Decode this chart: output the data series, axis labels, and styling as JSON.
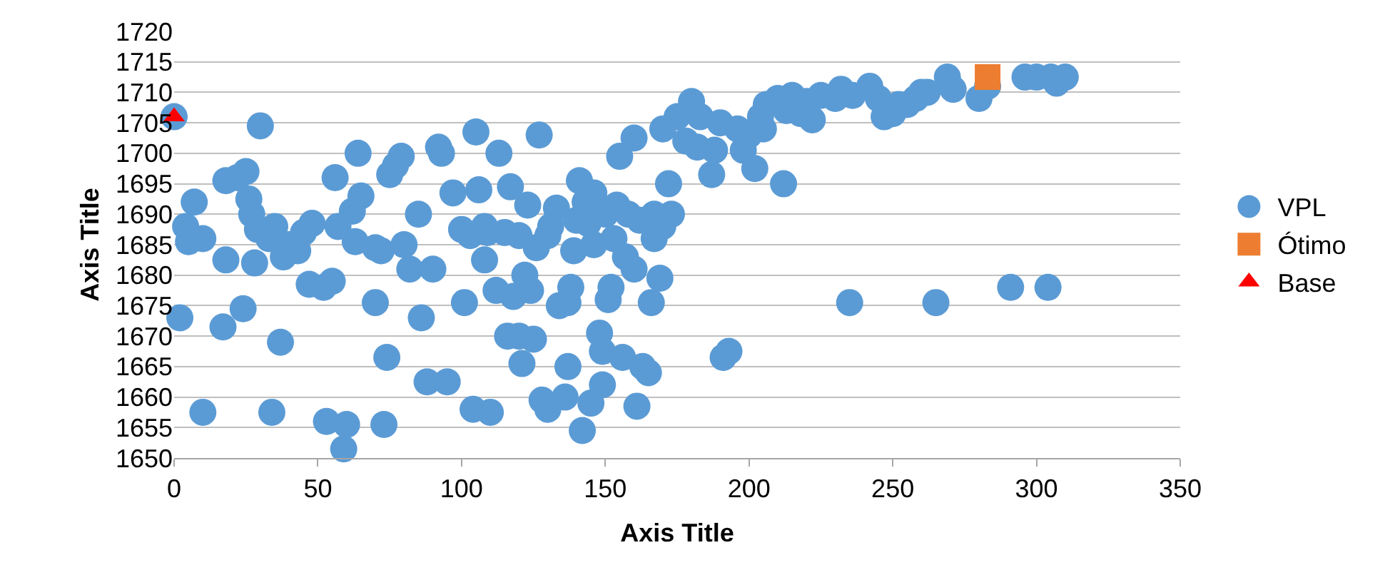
{
  "chart_data": {
    "type": "scatter",
    "xlabel": "Axis Title",
    "ylabel": "Axis Title",
    "xlim": [
      0,
      350
    ],
    "xticks": [
      0,
      50,
      100,
      150,
      200,
      250,
      300,
      350
    ],
    "ylim": [
      1650,
      1720
    ],
    "yticks": [
      1650,
      1655,
      1660,
      1665,
      1670,
      1675,
      1680,
      1685,
      1690,
      1695,
      1700,
      1705,
      1710,
      1715,
      1720
    ],
    "grid": "y",
    "legend": "right",
    "series": [
      {
        "name": "VPL",
        "color": "#5b9bd5",
        "marker": "circle",
        "x": [
          0,
          30,
          2,
          5,
          4,
          7,
          10,
          10,
          17,
          18,
          18,
          22,
          25,
          24,
          26,
          27,
          28,
          29,
          33,
          35,
          34,
          37,
          38,
          40,
          43,
          45,
          47,
          48,
          52,
          53,
          55,
          56,
          57,
          59,
          60,
          62,
          63,
          64,
          65,
          70,
          70,
          72,
          73,
          74,
          75,
          77,
          79,
          80,
          82,
          85,
          86,
          88,
          90,
          92,
          93,
          95,
          97,
          100,
          101,
          103,
          104,
          105,
          106,
          108,
          108,
          109,
          110,
          112,
          113,
          115,
          116,
          117,
          118,
          120,
          121,
          120,
          122,
          123,
          124,
          125,
          126,
          127,
          128,
          130,
          130,
          131,
          133,
          134,
          136,
          137,
          137,
          138,
          139,
          140,
          141,
          142,
          143,
          144,
          145,
          146,
          146,
          148,
          149,
          149,
          150,
          151,
          152,
          153,
          154,
          155,
          156,
          157,
          158,
          160,
          160,
          161,
          162,
          163,
          165,
          166,
          167,
          167,
          169,
          170,
          170,
          172,
          173,
          175,
          178,
          180,
          182,
          183,
          187,
          188,
          190,
          191,
          193,
          196,
          198,
          200,
          202,
          204,
          205,
          206,
          210,
          212,
          213,
          215,
          218,
          220,
          222,
          225,
          230,
          232,
          235,
          236,
          242,
          245,
          247,
          250,
          252,
          255,
          258,
          260,
          262,
          265,
          269,
          271,
          280,
          283,
          291,
          296,
          300,
          304,
          305,
          307,
          310
        ],
        "values": [
          1706,
          1704.5,
          1673,
          1685.5,
          1688,
          1692,
          1686,
          1657.5,
          1671.5,
          1682.5,
          1695.5,
          1696,
          1697,
          1674.5,
          1692.5,
          1690,
          1682,
          1687.5,
          1686,
          1688,
          1657.5,
          1669,
          1683,
          1685,
          1684,
          1687,
          1678.5,
          1688.5,
          1678,
          1656,
          1679,
          1696,
          1688,
          1651.5,
          1655.5,
          1690.5,
          1685.5,
          1700,
          1693,
          1675.5,
          1684.5,
          1684,
          1655.5,
          1666.5,
          1696.5,
          1698,
          1699.5,
          1685,
          1681,
          1690,
          1673,
          1662.5,
          1681,
          1701,
          1700,
          1662.5,
          1693.5,
          1687.5,
          1675.5,
          1686.5,
          1658,
          1703.5,
          1694,
          1688,
          1682.5,
          1687,
          1657.5,
          1677.5,
          1700,
          1687,
          1670,
          1694.5,
          1676.5,
          1670,
          1665.5,
          1686.5,
          1680,
          1691.5,
          1677.5,
          1669.5,
          1684.5,
          1703,
          1659.5,
          1686.5,
          1658,
          1688,
          1691,
          1675,
          1660,
          1665,
          1675.5,
          1678,
          1684,
          1689,
          1695.5,
          1654.5,
          1692,
          1688.5,
          1659,
          1693.5,
          1685,
          1670.5,
          1667.5,
          1662,
          1690,
          1676,
          1678,
          1686,
          1691.5,
          1699.5,
          1666.5,
          1683,
          1690,
          1681,
          1702.5,
          1658.5,
          1689,
          1665,
          1664,
          1675.5,
          1690,
          1686,
          1679.5,
          1704,
          1688,
          1695,
          1690,
          1706,
          1702,
          1708.5,
          1701,
          1706,
          1696.5,
          1700.5,
          1705,
          1666.5,
          1667.5,
          1704,
          1700.5,
          1703,
          1697.5,
          1706,
          1704,
          1708,
          1709,
          1695,
          1707,
          1709.5,
          1706.5,
          1708.5,
          1705.5,
          1709.5,
          1709,
          1710.5,
          1675.5,
          1709.5,
          1711,
          1709,
          1706,
          1706.5,
          1708,
          1708,
          1709,
          1710,
          1710,
          1675.5,
          1712.5,
          1710.5,
          1709,
          1711,
          1678,
          1712.5,
          1712.5,
          1678,
          1712.5,
          1711.5,
          1712.5
        ]
      },
      {
        "name": "Ótimo",
        "color": "#ed7d31",
        "marker": "square",
        "x": [
          283
        ],
        "values": [
          1712.5
        ]
      },
      {
        "name": "Base",
        "color": "#ff0000",
        "marker": "triangle",
        "x": [
          0
        ],
        "values": [
          1706
        ]
      }
    ]
  }
}
